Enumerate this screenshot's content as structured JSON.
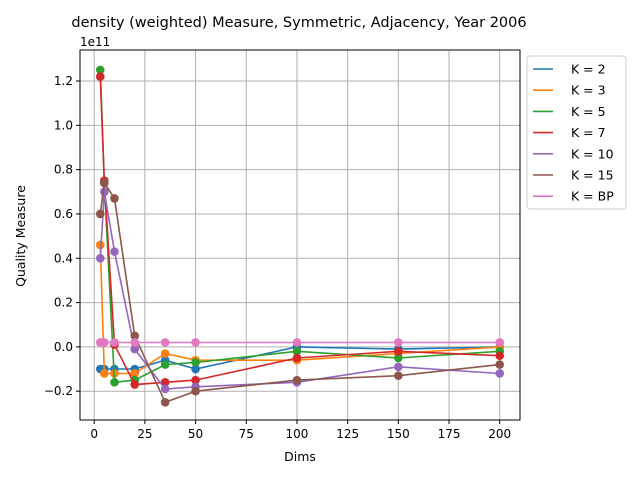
{
  "chart_data": {
    "type": "line",
    "title": "density (weighted) Measure, Symmetric, Adjacency, Year 2006",
    "xlabel": "Dims",
    "ylabel": "Quality Measure",
    "y_offset_label": "1e11",
    "xlim": [
      -7,
      210
    ],
    "ylim": [
      -0.33,
      1.34
    ],
    "y_scale_factor": 100000000000.0,
    "xticks": [
      0,
      25,
      50,
      75,
      100,
      125,
      150,
      175,
      200
    ],
    "yticks": [
      -0.2,
      0.0,
      0.2,
      0.4,
      0.6,
      0.8,
      1.0,
      1.2
    ],
    "ytick_labels": [
      "−0.2",
      "0.0",
      "0.2",
      "0.4",
      "0.6",
      "0.8",
      "1.0",
      "1.2"
    ],
    "grid": true,
    "legend_position": "outside-top-right",
    "x": [
      3,
      5,
      10,
      20,
      35,
      50,
      100,
      150,
      200
    ],
    "series": [
      {
        "name": "K = 2",
        "color": "#1f77b4",
        "values": [
          -0.1,
          -0.1,
          -0.1,
          -0.1,
          -0.06,
          -0.1,
          0.0,
          -0.01,
          0.0
        ]
      },
      {
        "name": "K = 3",
        "color": "#ff7f0e",
        "values": [
          0.46,
          -0.12,
          -0.12,
          -0.12,
          -0.03,
          -0.06,
          -0.06,
          -0.03,
          0.0
        ]
      },
      {
        "name": "K = 5",
        "color": "#2ca02c",
        "values": [
          1.25,
          0.74,
          -0.16,
          -0.15,
          -0.08,
          -0.07,
          -0.02,
          -0.05,
          -0.02
        ]
      },
      {
        "name": "K = 7",
        "color": "#d62728",
        "values": [
          1.22,
          0.75,
          0.01,
          -0.17,
          -0.16,
          -0.15,
          -0.05,
          -0.02,
          -0.04
        ]
      },
      {
        "name": "K = 10",
        "color": "#9467bd",
        "values": [
          0.4,
          0.7,
          0.43,
          -0.01,
          -0.19,
          -0.18,
          -0.16,
          -0.09,
          -0.12
        ]
      },
      {
        "name": "K = 15",
        "color": "#8c564b",
        "values": [
          0.6,
          0.74,
          0.67,
          0.05,
          -0.25,
          -0.2,
          -0.15,
          -0.13,
          -0.08
        ]
      },
      {
        "name": "K = BP",
        "color": "#e377c2",
        "values": [
          0.02,
          0.02,
          0.02,
          0.02,
          0.02,
          0.02,
          0.02,
          0.02,
          0.02
        ]
      }
    ]
  }
}
